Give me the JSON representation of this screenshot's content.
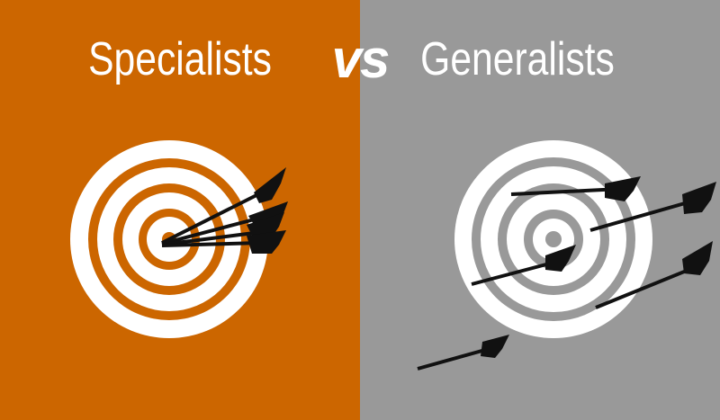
{
  "left": {
    "title": "Specialists",
    "background": "#cc6600"
  },
  "right": {
    "title": "Generalists",
    "background": "#999999"
  },
  "vs_label": "vs",
  "colors": {
    "text": "#ffffff",
    "ring": "#ffffff",
    "arrow": "#111111"
  }
}
